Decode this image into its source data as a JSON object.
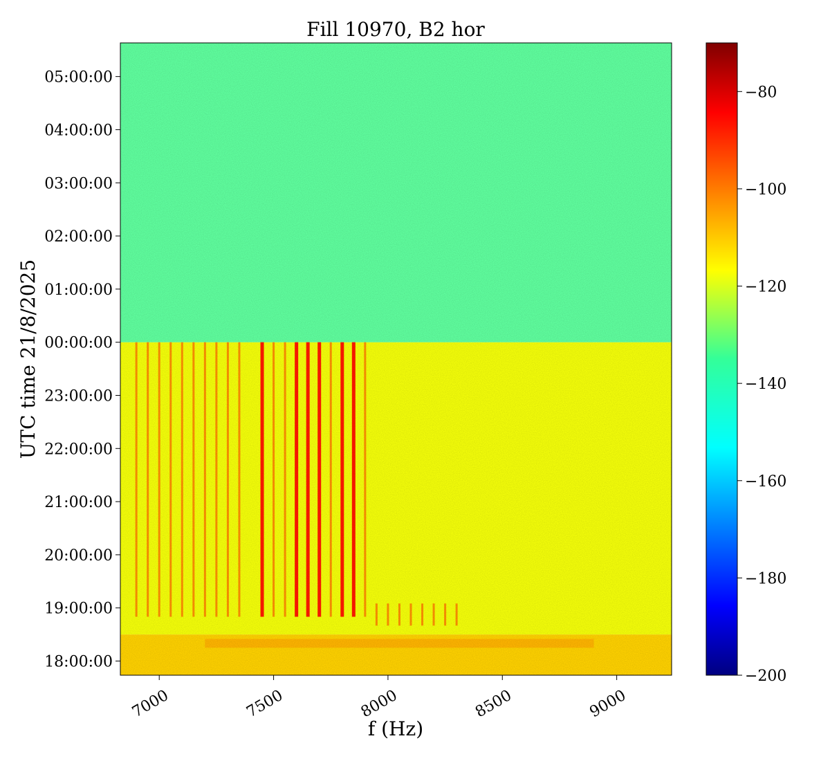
{
  "chart_data": {
    "type": "heatmap",
    "title": "Fill 10970, B2 hor",
    "xlabel": "f (Hz)",
    "ylabel": "UTC time 21/8/2025",
    "x_range_hz": [
      6830,
      9240
    ],
    "x_ticks": [
      {
        "value": 7000,
        "label": "7000"
      },
      {
        "value": 7500,
        "label": "7500"
      },
      {
        "value": 8000,
        "label": "8000"
      },
      {
        "value": 8500,
        "label": "8500"
      },
      {
        "value": 9000,
        "label": "9000"
      }
    ],
    "y_range": [
      "17:44:00",
      "05:38:00"
    ],
    "y_ticks": [
      {
        "value": "18:00:00",
        "label": "18:00:00"
      },
      {
        "value": "19:00:00",
        "label": "19:00:00"
      },
      {
        "value": "20:00:00",
        "label": "20:00:00"
      },
      {
        "value": "21:00:00",
        "label": "21:00:00"
      },
      {
        "value": "22:00:00",
        "label": "22:00:00"
      },
      {
        "value": "23:00:00",
        "label": "23:00:00"
      },
      {
        "value": "00:00:00",
        "label": "00:00:00"
      },
      {
        "value": "01:00:00",
        "label": "01:00:00"
      },
      {
        "value": "02:00:00",
        "label": "02:00:00"
      },
      {
        "value": "03:00:00",
        "label": "03:00:00"
      },
      {
        "value": "04:00:00",
        "label": "04:00:00"
      },
      {
        "value": "05:00:00",
        "label": "05:00:00"
      }
    ],
    "colorbar": {
      "colormap": "jet",
      "range": [
        -200,
        -70
      ],
      "ticks": [
        {
          "value": -80,
          "label": "−80"
        },
        {
          "value": -100,
          "label": "−100"
        },
        {
          "value": -120,
          "label": "−120"
        },
        {
          "value": -140,
          "label": "−140"
        },
        {
          "value": -160,
          "label": "−160"
        },
        {
          "value": -180,
          "label": "−180"
        },
        {
          "value": -200,
          "label": "−200"
        }
      ]
    },
    "regions": [
      {
        "time_from": "17:44:00",
        "time_to": "18:30:00",
        "level": -113,
        "note": "broadband elevated"
      },
      {
        "time_from": "18:30:00",
        "time_to": "00:00:00",
        "level": -120
      },
      {
        "time_from": "00:00:00",
        "time_to": "05:38:00",
        "level": -139
      }
    ],
    "spectral_lines_hz": [
      6900,
      6950,
      7000,
      7050,
      7100,
      7150,
      7200,
      7250,
      7300,
      7350,
      7450,
      7500,
      7550,
      7600,
      7650,
      7700,
      7750,
      7800,
      7850,
      7900,
      7950,
      8000,
      8050,
      8100,
      8150,
      8200,
      8250,
      8300
    ],
    "strong_lines_hz": [
      7450,
      7600,
      7650,
      7700,
      7800,
      7850
    ],
    "late_lines_hz": [
      7950,
      8000,
      8050,
      8100,
      8150,
      8200,
      8250,
      8300
    ]
  }
}
